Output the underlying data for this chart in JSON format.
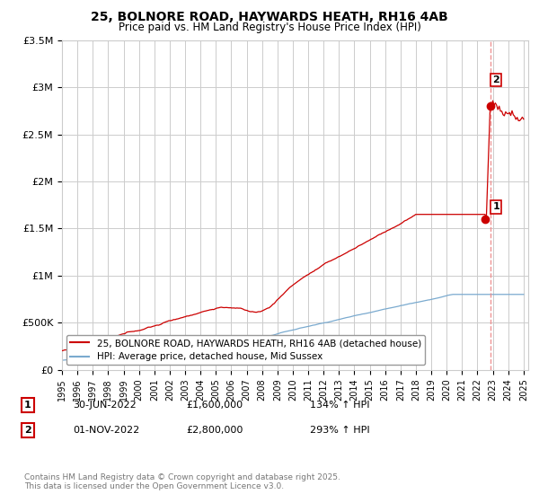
{
  "title": "25, BOLNORE ROAD, HAYWARDS HEATH, RH16 4AB",
  "subtitle": "Price paid vs. HM Land Registry's House Price Index (HPI)",
  "title_fontsize": 10,
  "subtitle_fontsize": 8.5,
  "bg_color": "#ffffff",
  "plot_bg_color": "#ffffff",
  "grid_color": "#cccccc",
  "red_line_color": "#cc0000",
  "blue_line_color": "#7aaacf",
  "dashed_line_color": "#ee8888",
  "marker1_year": 2022.5,
  "marker2_year": 2022.83,
  "marker1_value": 1600000,
  "marker2_value": 2800000,
  "annotation1_label": "1",
  "annotation2_label": "2",
  "legend_entries": [
    "25, BOLNORE ROAD, HAYWARDS HEATH, RH16 4AB (detached house)",
    "HPI: Average price, detached house, Mid Sussex"
  ],
  "footer_rows": [
    [
      "1",
      "30-JUN-2022",
      "£1,600,000",
      "134% ↑ HPI"
    ],
    [
      "2",
      "01-NOV-2022",
      "£2,800,000",
      "293% ↑ HPI"
    ]
  ],
  "copyright_text": "Contains HM Land Registry data © Crown copyright and database right 2025.\nThis data is licensed under the Open Government Licence v3.0.",
  "ylim": [
    0,
    3500000
  ],
  "yticks": [
    0,
    500000,
    1000000,
    1500000,
    2000000,
    2500000,
    3000000,
    3500000
  ],
  "ytick_labels": [
    "£0",
    "£500K",
    "£1M",
    "£1.5M",
    "£2M",
    "£2.5M",
    "£3M",
    "£3.5M"
  ],
  "start_year": 1995,
  "end_year": 2025
}
